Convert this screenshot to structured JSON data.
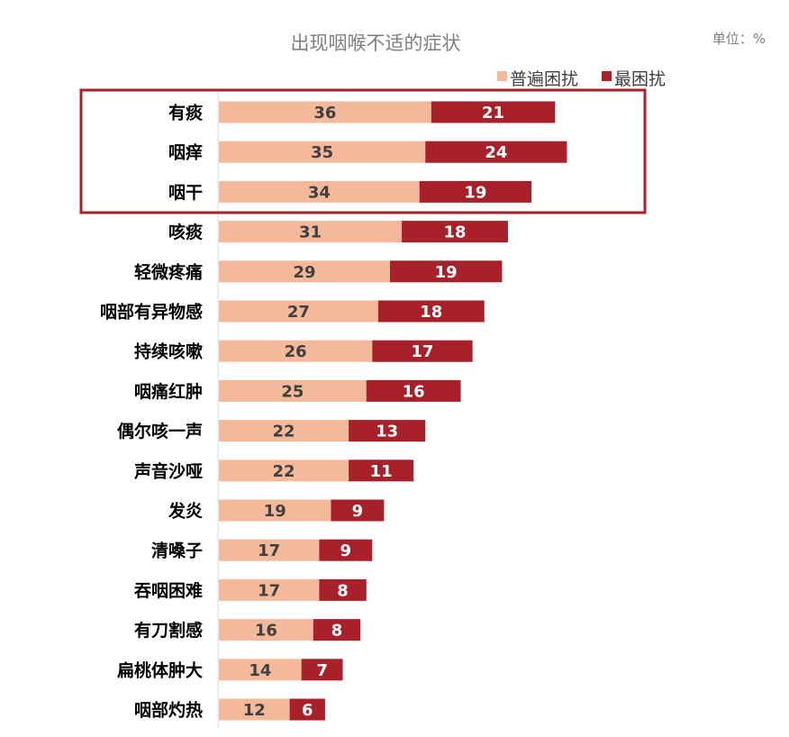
{
  "chart_data": {
    "type": "bar",
    "orientation": "horizontal",
    "stacked": true,
    "title": "出现咽喉不适的症状",
    "unit_label": "单位：%",
    "categories": [
      "有痰",
      "咽痒",
      "咽干",
      "咳痰",
      "轻微疼痛",
      "咽部有异物感",
      "持续咳嗽",
      "咽痛红肿",
      "偶尔咳一声",
      "声音沙哑",
      "发炎",
      "清嗓子",
      "吞咽困难",
      "有刀割感",
      "扁桃体肿大",
      "咽部灼热"
    ],
    "series": [
      {
        "name": "普遍困扰",
        "color": "#f4b99b",
        "values": [
          36,
          35,
          34,
          31,
          29,
          27,
          26,
          25,
          22,
          22,
          19,
          17,
          17,
          16,
          14,
          12
        ]
      },
      {
        "name": "最困扰",
        "color": "#a8202a",
        "values": [
          21,
          24,
          19,
          18,
          19,
          18,
          17,
          16,
          13,
          11,
          9,
          9,
          8,
          8,
          7,
          6
        ]
      }
    ],
    "legend_position": "top-right",
    "highlight_categories": [
      "有痰",
      "咽痒",
      "咽干"
    ],
    "highlight_color": "#a8202a",
    "grid": false
  }
}
